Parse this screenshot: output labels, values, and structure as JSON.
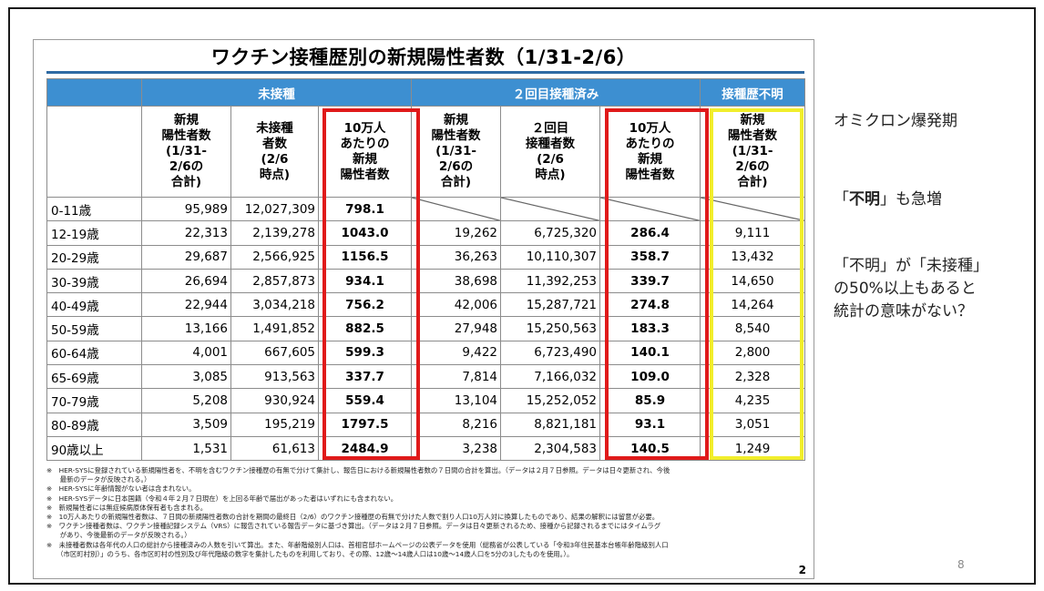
{
  "title": "ワクチン接種歴別の新規陽性者数（1/31-2/6）",
  "groups": {
    "unvaccinated": "未接種",
    "two_doses": "２回目接種済み",
    "unknown": "接種歴不明"
  },
  "subheaders": {
    "new_cases": "新規\n陽性者数\n(1/31-\n2/6の\n合計)",
    "unvax_count": "未接種\n者数\n(2/6\n時点)",
    "per100k": "10万人\nあたりの\n新規\n陽性者数",
    "two_count": "２回目\n接種者数\n(2/6\n時点)"
  },
  "rows": [
    {
      "age": "0-11歳",
      "u_new": "95,989",
      "u_pop": "12,027,309",
      "u_rate": "798.1",
      "v_new": "",
      "v_pop": "",
      "v_rate": "",
      "unk": "",
      "blank": true
    },
    {
      "age": "12-19歳",
      "u_new": "22,313",
      "u_pop": "2,139,278",
      "u_rate": "1043.0",
      "v_new": "19,262",
      "v_pop": "6,725,320",
      "v_rate": "286.4",
      "unk": "9,111"
    },
    {
      "age": "20-29歳",
      "u_new": "29,687",
      "u_pop": "2,566,925",
      "u_rate": "1156.5",
      "v_new": "36,263",
      "v_pop": "10,110,307",
      "v_rate": "358.7",
      "unk": "13,432"
    },
    {
      "age": "30-39歳",
      "u_new": "26,694",
      "u_pop": "2,857,873",
      "u_rate": "934.1",
      "v_new": "38,698",
      "v_pop": "11,392,253",
      "v_rate": "339.7",
      "unk": "14,650"
    },
    {
      "age": "40-49歳",
      "u_new": "22,944",
      "u_pop": "3,034,218",
      "u_rate": "756.2",
      "v_new": "42,006",
      "v_pop": "15,287,721",
      "v_rate": "274.8",
      "unk": "14,264"
    },
    {
      "age": "50-59歳",
      "u_new": "13,166",
      "u_pop": "1,491,852",
      "u_rate": "882.5",
      "v_new": "27,948",
      "v_pop": "15,250,563",
      "v_rate": "183.3",
      "unk": "8,540"
    },
    {
      "age": "60-64歳",
      "u_new": "4,001",
      "u_pop": "667,605",
      "u_rate": "599.3",
      "v_new": "9,422",
      "v_pop": "6,723,490",
      "v_rate": "140.1",
      "unk": "2,800"
    },
    {
      "age": "65-69歳",
      "u_new": "3,085",
      "u_pop": "913,563",
      "u_rate": "337.7",
      "v_new": "7,814",
      "v_pop": "7,166,032",
      "v_rate": "109.0",
      "unk": "2,328"
    },
    {
      "age": "70-79歳",
      "u_new": "5,208",
      "u_pop": "930,924",
      "u_rate": "559.4",
      "v_new": "13,104",
      "v_pop": "15,252,052",
      "v_rate": "85.9",
      "unk": "4,235"
    },
    {
      "age": "80-89歳",
      "u_new": "3,509",
      "u_pop": "195,219",
      "u_rate": "1797.5",
      "v_new": "8,216",
      "v_pop": "8,821,181",
      "v_rate": "93.1",
      "unk": "3,051"
    },
    {
      "age": "90歳以上",
      "u_new": "1,531",
      "u_pop": "61,613",
      "u_rate": "2484.9",
      "v_new": "3,238",
      "v_pop": "2,304,583",
      "v_rate": "140.5",
      "unk": "1,249"
    }
  ],
  "footnotes": [
    "※　HER-SYSに登録されている新規陽性者を、不明を含むワクチン接種歴の有無で分けて集計し、報告日における新規陽性者数の７日間の合計を算出。（データは２月７日参照。データは日々更新され、今後",
    "　　最新のデータが反映される。）",
    "※　HER-SYSに年齢情報がない者は含まれない。",
    "※　HER-SYSデータに日本国籍（令和４年２月７日現在）を上回る年齢で届出があった者はいずれにも含まれない。",
    "※　新規陽性者には無症候病原体保有者も含まれる。",
    "※　10万人あたりの新規陽性者数は、７日間の新規陽性者数の合計を期間の最終日（2/6）のワクチン接種歴の有無で分けた人数で割り人口10万人対に換算したものであり、結果の解釈には留意が必要。",
    "※　ワクチン接種者数は、ワクチン接種記録システム（VRS）に報告されている報告データに基づき算出。（データは２月７日参照。データは日々更新されるため、接種から記録されるまでにはタイムラグ",
    "　　があり、今後最新のデータが反映される。）",
    "※　未接種者数は各年代の人口の総計から接種済みの人数を引いて算出。また、年齢階級別人口は、首相官邸ホームページの公表データを使用（総務省が公表している「令和3年住民基本台帳年齢階級別人口",
    "　　（市区町村別）」のうち、各市区町村の性別及び年代階級の数字を集計したものを利用しており、その際、12歳～14歳人口は10歳～14歳人口を5分の3したものを使用。）。"
  ],
  "doc_page": "2",
  "side": {
    "line1": "オミクロン爆発期",
    "line2_open": "「",
    "line2_bold": "不明",
    "line2_rest": "」も急増",
    "line3a": "「不明」が「未接種」",
    "line3b": "の50%以上もあると",
    "line3c": "統計の意味がない？"
  },
  "slide_number": "8",
  "colors": {
    "header_blue": "#3d8fd1",
    "box_red": "#e01a1a",
    "box_yellow": "#f1ee2b",
    "rule_blue": "#2f6aa3"
  }
}
